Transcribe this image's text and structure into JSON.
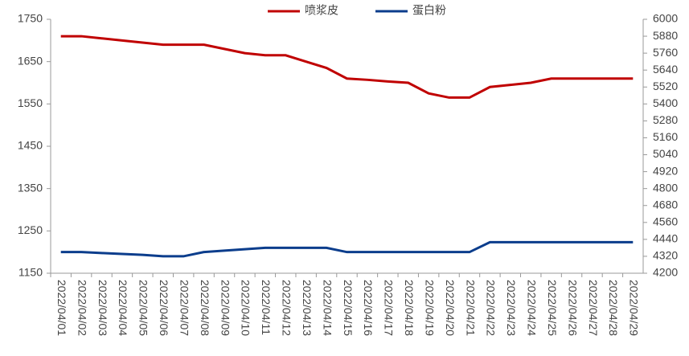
{
  "chart_data": {
    "type": "line",
    "categories": [
      "2022/04/01",
      "2022/04/02",
      "2022/04/03",
      "2022/04/04",
      "2022/04/05",
      "2022/04/06",
      "2022/04/07",
      "2022/04/08",
      "2022/04/09",
      "2022/04/10",
      "2022/04/11",
      "2022/04/12",
      "2022/04/13",
      "2022/04/14",
      "2022/04/15",
      "2022/04/16",
      "2022/04/17",
      "2022/04/18",
      "2022/04/19",
      "2022/04/20",
      "2022/04/21",
      "2022/04/22",
      "2022/04/23",
      "2022/04/24",
      "2022/04/25",
      "2022/04/26",
      "2022/04/27",
      "2022/04/28",
      "2022/04/29"
    ],
    "series": [
      {
        "name": "喷浆皮",
        "color": "#c00000",
        "values": [
          1710,
          1710,
          1705,
          1700,
          1695,
          1690,
          1690,
          1690,
          1680,
          1670,
          1665,
          1665,
          1650,
          1635,
          1610,
          1607,
          1603,
          1600,
          1575,
          1565,
          1565,
          1590,
          1595,
          1600,
          1610,
          1610,
          1610,
          1610,
          1610
        ]
      },
      {
        "name": "蛋白粉",
        "color": "#0b3d8c",
        "axis": "y2",
        "values": [
          4350,
          4350,
          4343,
          4337,
          4330,
          4320,
          4320,
          4350,
          4360,
          4370,
          4380,
          4380,
          4380,
          4380,
          4350,
          4350,
          4350,
          4350,
          4350,
          4350,
          4350,
          4420,
          4420,
          4420,
          4420,
          4420,
          4420,
          4420,
          4420
        ]
      }
    ],
    "ylim": [
      1150,
      1750
    ],
    "yticks": [
      1150,
      1250,
      1350,
      1450,
      1550,
      1650,
      1750
    ],
    "y2lim": [
      4200,
      6000
    ],
    "y2ticks": [
      4200,
      4320,
      4440,
      4560,
      4680,
      4800,
      4920,
      5040,
      5160,
      5280,
      5400,
      5520,
      5640,
      5760,
      5880,
      6000
    ],
    "legend": "top"
  }
}
